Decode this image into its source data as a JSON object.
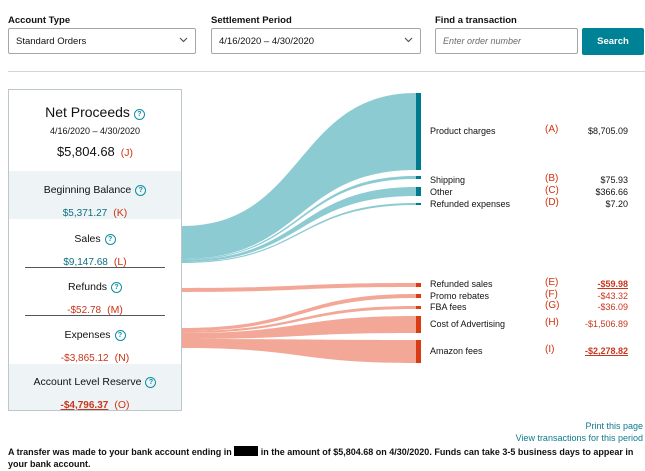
{
  "filters": {
    "account_type": {
      "label": "Account Type",
      "value": "Standard Orders"
    },
    "settlement_period": {
      "label": "Settlement Period",
      "value": "4/16/2020 – 4/30/2020"
    },
    "find": {
      "label": "Find a transaction",
      "placeholder": "Enter order number"
    },
    "search_label": "Search"
  },
  "summary": {
    "net_proceeds": {
      "title": "Net Proceeds",
      "period": "4/16/2020 – 4/30/2020",
      "value": "$5,804.68",
      "letter": "(J)"
    },
    "beginning_balance": {
      "title": "Beginning Balance",
      "value": "$5,371.27",
      "letter": "(K)"
    },
    "sales": {
      "title": "Sales",
      "value": "$9,147.68",
      "letter": "(L)"
    },
    "refunds": {
      "title": "Refunds",
      "value": "-$52.78",
      "letter": "(M)"
    },
    "expenses": {
      "title": "Expenses",
      "value": "-$3,865.12",
      "letter": "(N)"
    },
    "reserve": {
      "title": "Account Level Reserve",
      "value": "-$4,796.37",
      "letter": "(O)"
    }
  },
  "breakdown": {
    "sales_items": [
      {
        "label": "Product charges",
        "letter": "(A)",
        "value": "$8,705.09",
        "amount": 8705.09
      },
      {
        "label": "Shipping",
        "letter": "(B)",
        "value": "$75.93",
        "amount": 75.93
      },
      {
        "label": "Other",
        "letter": "(C)",
        "value": "$366.66",
        "amount": 366.66
      },
      {
        "label": "Refunded expenses",
        "letter": "(D)",
        "value": "$7.20",
        "amount": 7.2
      }
    ],
    "cost_items": [
      {
        "label": "Refunded sales",
        "letter": "(E)",
        "value": "-$59.98",
        "amount": -59.98
      },
      {
        "label": "Promo rebates",
        "letter": "(F)",
        "value": "-$43.32",
        "amount": -43.32
      },
      {
        "label": "FBA fees",
        "letter": "(G)",
        "value": "-$36.09",
        "amount": -36.09
      },
      {
        "label": "Cost of Advertising",
        "letter": "(H)",
        "value": "-$1,506.89",
        "amount": -1506.89
      },
      {
        "label": "Amazon fees",
        "letter": "(I)",
        "value": "-$2,278.82",
        "amount": -2278.82
      }
    ]
  },
  "links": {
    "print": "Print this page",
    "view_transactions": "View transactions for this period"
  },
  "footer": {
    "before": "A transfer was made to your bank account ending in",
    "after": "in the amount of $5,804.68 on 4/30/2020. Funds can take 3-5 business days to appear in your bank account."
  },
  "colors": {
    "accent": "#008296",
    "sales_flow": "#8dcbd3",
    "sales_bar": "#007a8f",
    "cost_flow": "#f3a797",
    "cost_bar": "#d93b14",
    "negative_text": "#c8361e",
    "letters": "#d13212"
  }
}
